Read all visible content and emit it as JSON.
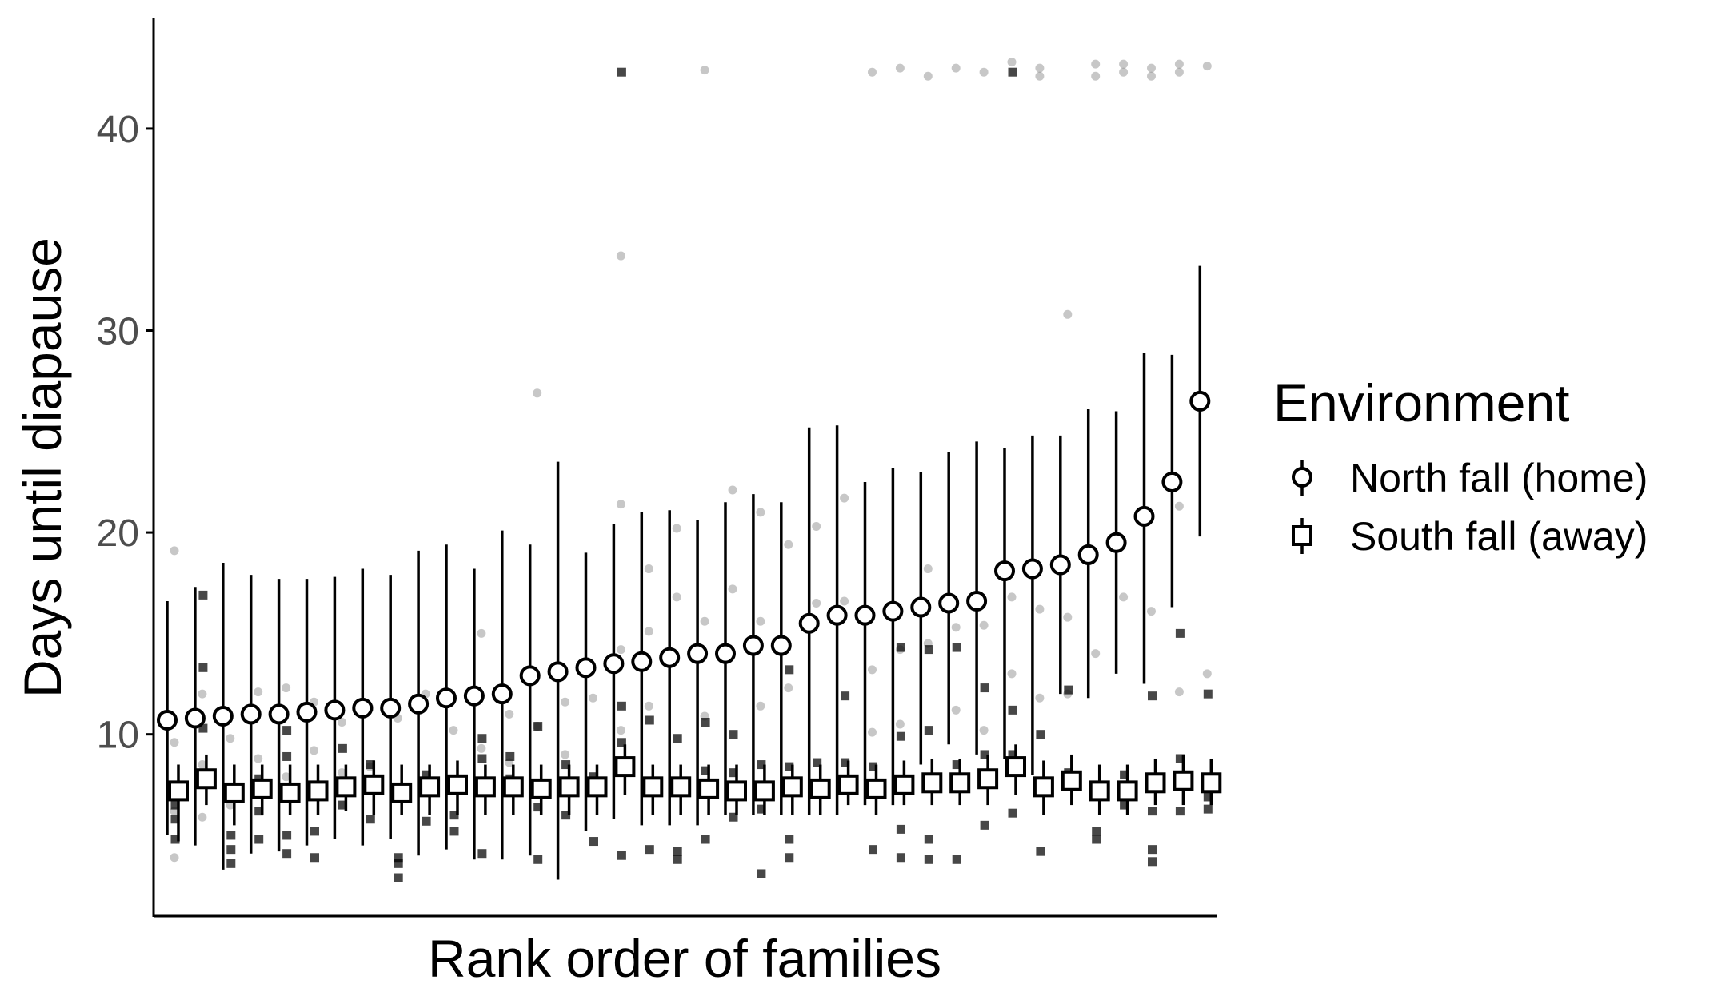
{
  "chart_data": {
    "type": "scatter",
    "xlabel": "Rank order of families",
    "ylabel": "Days until diapause",
    "ylim": [
      1,
      45.5
    ],
    "yticks": [
      10,
      20,
      30,
      40
    ],
    "legend": {
      "title": "Environment",
      "position": "right"
    },
    "grid": false,
    "x": [
      1,
      2,
      3,
      4,
      5,
      6,
      7,
      8,
      9,
      10,
      11,
      12,
      13,
      14,
      15,
      16,
      17,
      18,
      19,
      20,
      21,
      22,
      23,
      24,
      25,
      26,
      27,
      28,
      29,
      30,
      31,
      32,
      33,
      34,
      35,
      36,
      37,
      38
    ],
    "series": [
      {
        "name": "North fall (home)",
        "marker": "circle",
        "mean": [
          10.7,
          10.8,
          10.9,
          11.0,
          11.0,
          11.1,
          11.2,
          11.3,
          11.3,
          11.5,
          11.8,
          11.9,
          12.0,
          12.9,
          13.1,
          13.3,
          13.5,
          13.6,
          13.8,
          14.0,
          14.0,
          14.4,
          14.4,
          15.5,
          15.9,
          15.9,
          16.1,
          16.3,
          16.5,
          16.6,
          18.1,
          18.2,
          18.4,
          18.9,
          19.5,
          20.8,
          22.5,
          26.5
        ],
        "lower": [
          5.0,
          4.5,
          3.3,
          4.1,
          4.2,
          4.5,
          4.8,
          4.5,
          4.8,
          4.0,
          4.3,
          3.8,
          3.8,
          4.0,
          2.8,
          5.2,
          5.8,
          5.5,
          5.5,
          5.5,
          6.0,
          6.0,
          6.0,
          6.0,
          6.0,
          6.5,
          6.5,
          8.5,
          9.5,
          9.0,
          8.8,
          8.0,
          12.0,
          11.8,
          13.0,
          12.5,
          16.3,
          19.8
        ],
        "upper": [
          16.6,
          17.3,
          18.5,
          17.9,
          17.7,
          17.7,
          17.8,
          18.2,
          17.9,
          19.1,
          19.4,
          18.2,
          20.1,
          19.4,
          23.5,
          19.0,
          20.4,
          21.0,
          21.1,
          20.6,
          21.5,
          21.9,
          21.5,
          25.2,
          25.3,
          22.5,
          23.2,
          23.0,
          24.0,
          24.5,
          24.2,
          24.8,
          24.8,
          26.1,
          26.0,
          28.9,
          28.8,
          33.2
        ],
        "color": "#000000"
      },
      {
        "name": "South fall (away)",
        "marker": "square",
        "mean": [
          7.2,
          7.8,
          7.1,
          7.3,
          7.1,
          7.2,
          7.4,
          7.5,
          7.1,
          7.4,
          7.5,
          7.4,
          7.4,
          7.3,
          7.4,
          7.4,
          8.4,
          7.4,
          7.4,
          7.3,
          7.2,
          7.2,
          7.4,
          7.3,
          7.5,
          7.3,
          7.5,
          7.6,
          7.6,
          7.8,
          8.4,
          7.4,
          7.7,
          7.2,
          7.2,
          7.6,
          7.7,
          7.6
        ],
        "lower": [
          4.7,
          6.5,
          5.5,
          6.0,
          6.0,
          6.0,
          6.2,
          6.0,
          6.0,
          6.0,
          6.0,
          6.0,
          6.0,
          6.0,
          6.0,
          6.0,
          7.0,
          6.0,
          6.0,
          6.0,
          6.0,
          6.0,
          6.0,
          6.0,
          6.5,
          6.0,
          6.5,
          6.5,
          6.5,
          6.5,
          7.0,
          6.0,
          6.5,
          6.0,
          6.0,
          6.5,
          6.5,
          6.5
        ],
        "upper": [
          8.5,
          9.0,
          8.5,
          8.5,
          8.5,
          8.5,
          8.5,
          8.7,
          8.5,
          8.5,
          8.7,
          8.5,
          8.5,
          8.5,
          8.5,
          8.5,
          9.5,
          8.5,
          8.5,
          8.5,
          8.5,
          8.5,
          8.5,
          8.5,
          8.7,
          8.5,
          8.7,
          8.8,
          8.8,
          9.0,
          9.5,
          8.7,
          9.0,
          8.5,
          8.5,
          8.8,
          9.0,
          8.8
        ],
        "color": "#000000"
      }
    ],
    "raw_points": {
      "north": [
        [
          1,
          19.1
        ],
        [
          1,
          9.6
        ],
        [
          1,
          6.2
        ],
        [
          1,
          3.9
        ],
        [
          2,
          12.0
        ],
        [
          2,
          8.5
        ],
        [
          2,
          5.9
        ],
        [
          3,
          9.8
        ],
        [
          3,
          6.5
        ],
        [
          4,
          12.1
        ],
        [
          4,
          8.8
        ],
        [
          5,
          12.3
        ],
        [
          5,
          7.9
        ],
        [
          6,
          11.6
        ],
        [
          6,
          9.2
        ],
        [
          7,
          10.6
        ],
        [
          7,
          8.1
        ],
        [
          8,
          11.3
        ],
        [
          8,
          8.4
        ],
        [
          9,
          10.8
        ],
        [
          10,
          12.0
        ],
        [
          11,
          10.2
        ],
        [
          12,
          15.0
        ],
        [
          12,
          9.3
        ],
        [
          13,
          11.0
        ],
        [
          13,
          8.6
        ],
        [
          14,
          26.9
        ],
        [
          14,
          10.4
        ],
        [
          15,
          11.6
        ],
        [
          15,
          9.0
        ],
        [
          16,
          11.8
        ],
        [
          17,
          33.7
        ],
        [
          17,
          21.4
        ],
        [
          17,
          14.2
        ],
        [
          17,
          10.2
        ],
        [
          18,
          18.2
        ],
        [
          18,
          15.1
        ],
        [
          18,
          11.4
        ],
        [
          19,
          20.2
        ],
        [
          19,
          16.8
        ],
        [
          20,
          42.9
        ],
        [
          20,
          15.6
        ],
        [
          20,
          10.9
        ],
        [
          21,
          22.1
        ],
        [
          21,
          17.2
        ],
        [
          22,
          21.0
        ],
        [
          22,
          15.6
        ],
        [
          22,
          11.4
        ],
        [
          23,
          19.4
        ],
        [
          23,
          12.3
        ],
        [
          24,
          20.3
        ],
        [
          24,
          16.5
        ],
        [
          25,
          21.7
        ],
        [
          25,
          16.6
        ],
        [
          26,
          42.8
        ],
        [
          26,
          13.2
        ],
        [
          26,
          10.1
        ],
        [
          27,
          43.0
        ],
        [
          27,
          14.2
        ],
        [
          27,
          10.5
        ],
        [
          28,
          42.6
        ],
        [
          28,
          18.2
        ],
        [
          28,
          14.5
        ],
        [
          29,
          43.0
        ],
        [
          29,
          15.3
        ],
        [
          29,
          11.2
        ],
        [
          30,
          42.8
        ],
        [
          30,
          15.4
        ],
        [
          30,
          10.2
        ],
        [
          31,
          43.3
        ],
        [
          31,
          16.8
        ],
        [
          31,
          13.0
        ],
        [
          32,
          43.0
        ],
        [
          32,
          42.6
        ],
        [
          32,
          16.2
        ],
        [
          32,
          11.8
        ],
        [
          33,
          30.8
        ],
        [
          33,
          15.8
        ],
        [
          33,
          12.0
        ],
        [
          34,
          43.2
        ],
        [
          34,
          42.6
        ],
        [
          34,
          14.0
        ],
        [
          35,
          43.2
        ],
        [
          35,
          42.8
        ],
        [
          35,
          16.8
        ],
        [
          36,
          43.0
        ],
        [
          36,
          42.6
        ],
        [
          36,
          16.1
        ],
        [
          37,
          43.2
        ],
        [
          37,
          42.8
        ],
        [
          37,
          21.3
        ],
        [
          37,
          12.1
        ],
        [
          38,
          43.1
        ],
        [
          38,
          13.0
        ]
      ],
      "south": [
        [
          1,
          6.5
        ],
        [
          1,
          5.8
        ],
        [
          1,
          4.8
        ],
        [
          2,
          16.9
        ],
        [
          2,
          13.3
        ],
        [
          2,
          10.3
        ],
        [
          3,
          5.0
        ],
        [
          3,
          4.3
        ],
        [
          3,
          3.6
        ],
        [
          4,
          7.8
        ],
        [
          4,
          6.2
        ],
        [
          4,
          4.8
        ],
        [
          5,
          10.2
        ],
        [
          5,
          8.9
        ],
        [
          5,
          5.0
        ],
        [
          5,
          4.1
        ],
        [
          6,
          5.2
        ],
        [
          6,
          3.9
        ],
        [
          7,
          9.3
        ],
        [
          7,
          6.5
        ],
        [
          8,
          8.5
        ],
        [
          8,
          5.8
        ],
        [
          9,
          3.9
        ],
        [
          9,
          3.6
        ],
        [
          9,
          2.9
        ],
        [
          10,
          8.0
        ],
        [
          10,
          5.7
        ],
        [
          11,
          6.0
        ],
        [
          11,
          5.2
        ],
        [
          12,
          9.8
        ],
        [
          12,
          8.8
        ],
        [
          12,
          4.1
        ],
        [
          13,
          8.9
        ],
        [
          13,
          7.8
        ],
        [
          14,
          10.4
        ],
        [
          14,
          6.4
        ],
        [
          14,
          3.8
        ],
        [
          15,
          8.5
        ],
        [
          15,
          6.0
        ],
        [
          16,
          7.9
        ],
        [
          16,
          4.7
        ],
        [
          17,
          42.8
        ],
        [
          17,
          11.4
        ],
        [
          17,
          9.6
        ],
        [
          17,
          4.0
        ],
        [
          18,
          10.7
        ],
        [
          18,
          7.4
        ],
        [
          18,
          4.3
        ],
        [
          19,
          9.8
        ],
        [
          19,
          4.2
        ],
        [
          19,
          3.8
        ],
        [
          20,
          10.6
        ],
        [
          20,
          8.2
        ],
        [
          20,
          4.8
        ],
        [
          21,
          10.0
        ],
        [
          21,
          8.1
        ],
        [
          21,
          5.9
        ],
        [
          22,
          8.5
        ],
        [
          22,
          6.3
        ],
        [
          22,
          3.1
        ],
        [
          23,
          13.2
        ],
        [
          23,
          8.4
        ],
        [
          23,
          4.8
        ],
        [
          23,
          3.9
        ],
        [
          24,
          8.6
        ],
        [
          25,
          11.9
        ],
        [
          25,
          8.6
        ],
        [
          26,
          8.4
        ],
        [
          26,
          4.3
        ],
        [
          27,
          14.3
        ],
        [
          27,
          9.9
        ],
        [
          27,
          5.3
        ],
        [
          27,
          3.9
        ],
        [
          28,
          14.2
        ],
        [
          28,
          10.2
        ],
        [
          28,
          4.8
        ],
        [
          28,
          3.8
        ],
        [
          29,
          14.3
        ],
        [
          29,
          8.5
        ],
        [
          29,
          3.8
        ],
        [
          30,
          12.3
        ],
        [
          30,
          9.0
        ],
        [
          30,
          5.5
        ],
        [
          31,
          42.8
        ],
        [
          31,
          11.2
        ],
        [
          31,
          9.0
        ],
        [
          31,
          6.1
        ],
        [
          32,
          10.0
        ],
        [
          32,
          4.2
        ],
        [
          33,
          12.2
        ],
        [
          33,
          8.1
        ],
        [
          34,
          5.2
        ],
        [
          34,
          4.8
        ],
        [
          35,
          8.0
        ],
        [
          35,
          6.5
        ],
        [
          36,
          11.9
        ],
        [
          36,
          6.2
        ],
        [
          36,
          4.3
        ],
        [
          36,
          3.7
        ],
        [
          37,
          15.0
        ],
        [
          37,
          8.8
        ],
        [
          37,
          6.2
        ],
        [
          38,
          12.0
        ],
        [
          38,
          6.9
        ],
        [
          38,
          6.3
        ]
      ]
    }
  }
}
